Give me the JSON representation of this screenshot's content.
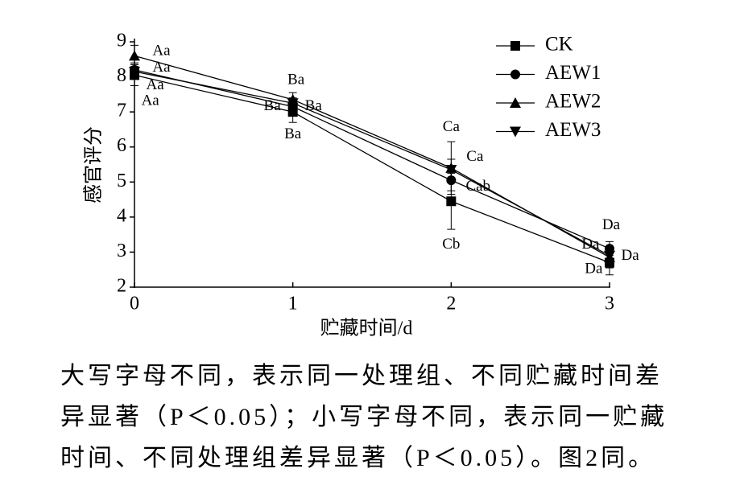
{
  "chart_data": {
    "type": "line",
    "x_label": "贮藏时间/d",
    "y_label": "感官评分",
    "x": [
      0,
      1,
      2,
      3
    ],
    "xlim": [
      0,
      3
    ],
    "xticks": [
      0,
      1,
      2,
      3
    ],
    "ylim": [
      2,
      9
    ],
    "yticks": [
      2,
      3,
      4,
      5,
      6,
      7,
      8,
      9
    ],
    "legend": "upper right",
    "series": [
      {
        "name": "CK",
        "color": "#000000",
        "marker": "square",
        "values": [
          8.05,
          7.0,
          4.45,
          2.7
        ],
        "errors": [
          0.3,
          0.3,
          0.8,
          0.35
        ]
      },
      {
        "name": "AEW1",
        "color": "#000000",
        "marker": "circle",
        "values": [
          8.2,
          7.15,
          5.05,
          3.1
        ],
        "errors": [
          0.2,
          0.2,
          0.3,
          0.2
        ]
      },
      {
        "name": "AEW2",
        "color": "#000000",
        "marker": "triangle-up",
        "values": [
          8.6,
          7.35,
          5.4,
          2.85
        ],
        "errors": [
          0.3,
          0.2,
          0.75,
          0.3
        ]
      },
      {
        "name": "AEW3",
        "color": "#000000",
        "marker": "triangle-down",
        "values": [
          8.15,
          7.25,
          5.35,
          2.9
        ],
        "errors": [
          0.2,
          0.15,
          0.3,
          0.2
        ]
      }
    ],
    "annotations": [
      {
        "text": "Aa",
        "x": 0.17,
        "y": 8.72
      },
      {
        "text": "Aa",
        "x": 0.17,
        "y": 8.25
      },
      {
        "text": "Aa",
        "x": 0.13,
        "y": 7.75
      },
      {
        "text": "Aa",
        "x": 0.1,
        "y": 7.3
      },
      {
        "text": "Ba",
        "x": 1.02,
        "y": 7.9
      },
      {
        "text": "Ba",
        "x": 0.87,
        "y": 7.15
      },
      {
        "text": "Ba",
        "x": 1.13,
        "y": 7.15
      },
      {
        "text": "Ba",
        "x": 1.0,
        "y": 6.35
      },
      {
        "text": "Ca",
        "x": 2.0,
        "y": 6.55
      },
      {
        "text": "Ca",
        "x": 2.15,
        "y": 5.7
      },
      {
        "text": "Cab",
        "x": 2.17,
        "y": 4.85
      },
      {
        "text": "Cb",
        "x": 2.0,
        "y": 3.2
      },
      {
        "text": "Da",
        "x": 3.01,
        "y": 3.75
      },
      {
        "text": "Da",
        "x": 2.88,
        "y": 3.2
      },
      {
        "text": "Da",
        "x": 3.13,
        "y": 2.88
      },
      {
        "text": "Da",
        "x": 2.9,
        "y": 2.5
      }
    ],
    "caption": [
      "大写字母不同，表示同一处理组、不同贮藏时间差",
      "异显著（P＜0.05）；小写字母不同，表示同一贮藏",
      "时间、不同处理组差异显著（P＜0.05）。图2同。"
    ]
  }
}
